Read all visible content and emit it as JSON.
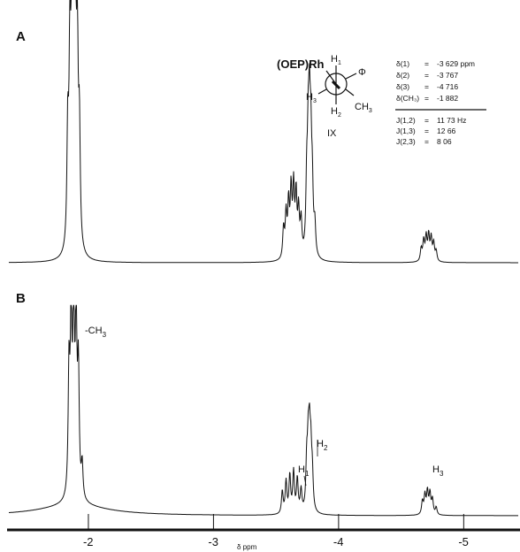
{
  "chart_data": {
    "type": "line",
    "xlabel": "δ ppm",
    "xlim": [
      -1.35,
      -5.45
    ],
    "x_ticks": [
      {
        "value": -2,
        "label": "-2"
      },
      {
        "value": -3,
        "label": "-3"
      },
      {
        "value": -4,
        "label": "-4"
      },
      {
        "value": -5,
        "label": "-5"
      }
    ],
    "panels": [
      {
        "label": "A",
        "peak_groups": [
          {
            "name": "CH3",
            "center": -1.882,
            "lines": [
              [
                -1.835,
                0.45
              ],
              [
                -1.852,
                0.72
              ],
              [
                -1.868,
                0.93
              ],
              [
                -1.882,
                1.0
              ],
              [
                -1.896,
                0.93
              ],
              [
                -1.912,
                0.72
              ],
              [
                -1.928,
                0.45
              ]
            ]
          },
          {
            "name": "H1",
            "center": -3.629,
            "lines": [
              [
                -3.56,
                0.12
              ],
              [
                -3.58,
                0.17
              ],
              [
                -3.6,
                0.21
              ],
              [
                -3.62,
                0.26
              ],
              [
                -3.64,
                0.27
              ],
              [
                -3.66,
                0.24
              ],
              [
                -3.68,
                0.18
              ],
              [
                -3.7,
                0.14
              ]
            ]
          },
          {
            "name": "H2",
            "center": -3.767,
            "lines": [
              [
                -3.745,
                0.26
              ],
              [
                -3.757,
                0.38
              ],
              [
                -3.767,
                0.46
              ],
              [
                -3.778,
                0.38
              ],
              [
                -3.79,
                0.24
              ],
              [
                -3.81,
                0.12
              ]
            ]
          },
          {
            "name": "H3",
            "center": -4.716,
            "lines": [
              [
                -4.66,
                0.05
              ],
              [
                -4.68,
                0.08
              ],
              [
                -4.7,
                0.095
              ],
              [
                -4.72,
                0.1
              ],
              [
                -4.74,
                0.09
              ],
              [
                -4.76,
                0.07
              ],
              [
                -4.78,
                0.04
              ]
            ]
          }
        ]
      },
      {
        "label": "B",
        "peak_groups": [
          {
            "name": "CH3",
            "center": -1.882,
            "lines": [
              [
                -1.845,
                0.65
              ],
              [
                -1.862,
                0.9
              ],
              [
                -1.882,
                1.0
              ],
              [
                -1.902,
                0.9
              ],
              [
                -1.92,
                0.65
              ],
              [
                -1.95,
                0.18
              ]
            ]
          },
          {
            "name": "H1",
            "center": -3.629,
            "lines": [
              [
                -3.55,
                0.12
              ],
              [
                -3.58,
                0.17
              ],
              [
                -3.61,
                0.2
              ],
              [
                -3.64,
                0.22
              ],
              [
                -3.67,
                0.18
              ],
              [
                -3.7,
                0.12
              ]
            ]
          },
          {
            "name": "H2",
            "center": -3.767,
            "lines": [
              [
                -3.745,
                0.24
              ],
              [
                -3.757,
                0.3
              ],
              [
                -3.767,
                0.34
              ],
              [
                -3.778,
                0.28
              ],
              [
                -3.79,
                0.18
              ]
            ]
          },
          {
            "name": "H3",
            "center": -4.716,
            "lines": [
              [
                -4.67,
                0.07
              ],
              [
                -4.69,
                0.1
              ],
              [
                -4.71,
                0.12
              ],
              [
                -4.73,
                0.11
              ],
              [
                -4.75,
                0.08
              ],
              [
                -4.78,
                0.04
              ]
            ]
          }
        ]
      }
    ],
    "annotations": {
      "ch3_label": "-CH",
      "ch3_sub": "3",
      "h1_label": "H",
      "h1_sub": "1",
      "h2_label": "H",
      "h2_sub": "2",
      "h3_label": "H",
      "h3_sub": "3"
    }
  },
  "structure": {
    "compound": "IX",
    "ligand": "(OEP)Rh",
    "h1": "H",
    "h1_sub": "1",
    "h2": "H",
    "h2_sub": "2",
    "h3": "H",
    "h3_sub": "3",
    "phi": "Φ",
    "ch3": "CH",
    "ch3_sub": "3"
  },
  "params": {
    "shifts": [
      {
        "label": "δ(1)",
        "eq": "=",
        "value": "-3 629 ppm"
      },
      {
        "label": "δ(2)",
        "eq": "=",
        "value": "-3 767"
      },
      {
        "label": "δ(3)",
        "eq": "=",
        "value": "-4 716"
      },
      {
        "label": "δ(CH₃)",
        "eq": "=",
        "value": "-1 882"
      }
    ],
    "couplings": [
      {
        "label": "J(1,2)",
        "eq": "=",
        "value": "11 73  Hz"
      },
      {
        "label": "J(1,3)",
        "eq": "=",
        "value": "12 66"
      },
      {
        "label": "J(2,3)",
        "eq": "=",
        "value": "8 06"
      }
    ]
  }
}
